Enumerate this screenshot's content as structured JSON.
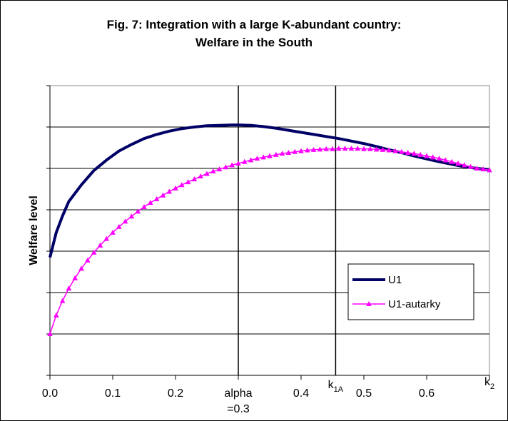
{
  "chart_data": {
    "type": "line",
    "title_lines": [
      "Fig. 7: Integration with a large K-abundant country:",
      "Welfare in the South"
    ],
    "xlabel": "",
    "ylabel": "Welfare level",
    "xlim": [
      0,
      0.7
    ],
    "ylim": [
      0,
      7
    ],
    "x_ticks": [
      {
        "value": 0.0,
        "label": "0.0"
      },
      {
        "value": 0.1,
        "label": "0.1"
      },
      {
        "value": 0.2,
        "label": "0.2"
      },
      {
        "value": 0.4,
        "label": "0.4"
      },
      {
        "value": 0.5,
        "label": "0.5"
      },
      {
        "value": 0.6,
        "label": "0.6"
      }
    ],
    "y_gridlines": [
      1,
      2,
      3,
      4,
      5,
      6
    ],
    "y_tick_labels_shown": false,
    "annotations": [
      {
        "x": 0.3,
        "line1": "alpha",
        "line2": "=0.3",
        "vertical_line": true
      },
      {
        "x": 0.455,
        "base": "k",
        "sub": "1A",
        "vertical_line": true
      },
      {
        "x": 0.7,
        "base": "k",
        "sub": "2",
        "vertical_line": false
      }
    ],
    "legend": {
      "position": "right",
      "entries": [
        "U1",
        "U1-autarky"
      ]
    },
    "series": [
      {
        "name": "U1",
        "color": "#000066",
        "marker": "none",
        "x": [
          0.0,
          0.01,
          0.02,
          0.03,
          0.05,
          0.07,
          0.09,
          0.11,
          0.13,
          0.15,
          0.17,
          0.19,
          0.21,
          0.23,
          0.25,
          0.27,
          0.29,
          0.3,
          0.32,
          0.34,
          0.36,
          0.38,
          0.4,
          0.42,
          0.44,
          0.46,
          0.48,
          0.5,
          0.52,
          0.54,
          0.56,
          0.58,
          0.6,
          0.62,
          0.64,
          0.66,
          0.68,
          0.7
        ],
        "y": [
          2.85,
          3.45,
          3.85,
          4.2,
          4.6,
          4.95,
          5.2,
          5.42,
          5.58,
          5.72,
          5.82,
          5.9,
          5.96,
          6.0,
          6.03,
          6.04,
          6.05,
          6.05,
          6.04,
          6.01,
          5.97,
          5.92,
          5.87,
          5.82,
          5.77,
          5.72,
          5.66,
          5.6,
          5.53,
          5.45,
          5.38,
          5.3,
          5.23,
          5.16,
          5.1,
          5.04,
          5.0,
          4.97
        ]
      },
      {
        "name": "U1-autarky",
        "color": "#ff00ff",
        "marker": "triangle",
        "x": [
          0.0,
          0.01,
          0.02,
          0.03,
          0.04,
          0.05,
          0.06,
          0.07,
          0.08,
          0.09,
          0.1,
          0.11,
          0.12,
          0.13,
          0.14,
          0.15,
          0.16,
          0.17,
          0.18,
          0.19,
          0.2,
          0.21,
          0.22,
          0.23,
          0.24,
          0.25,
          0.26,
          0.27,
          0.28,
          0.29,
          0.3,
          0.31,
          0.32,
          0.33,
          0.34,
          0.35,
          0.36,
          0.37,
          0.38,
          0.39,
          0.4,
          0.41,
          0.42,
          0.43,
          0.44,
          0.45,
          0.46,
          0.47,
          0.48,
          0.49,
          0.5,
          0.51,
          0.52,
          0.53,
          0.54,
          0.55,
          0.56,
          0.57,
          0.58,
          0.59,
          0.6,
          0.61,
          0.62,
          0.63,
          0.64,
          0.65,
          0.66,
          0.67,
          0.68,
          0.69,
          0.7
        ],
        "y": [
          1.0,
          1.45,
          1.8,
          2.1,
          2.35,
          2.58,
          2.78,
          2.97,
          3.14,
          3.3,
          3.45,
          3.59,
          3.72,
          3.84,
          3.96,
          4.07,
          4.17,
          4.26,
          4.35,
          4.44,
          4.52,
          4.6,
          4.67,
          4.74,
          4.81,
          4.87,
          4.93,
          4.98,
          5.03,
          5.08,
          5.12,
          5.16,
          5.2,
          5.24,
          5.27,
          5.3,
          5.33,
          5.36,
          5.38,
          5.4,
          5.42,
          5.44,
          5.45,
          5.46,
          5.47,
          5.47,
          5.48,
          5.48,
          5.48,
          5.48,
          5.47,
          5.47,
          5.46,
          5.45,
          5.44,
          5.42,
          5.4,
          5.38,
          5.36,
          5.33,
          5.3,
          5.27,
          5.24,
          5.2,
          5.16,
          5.12,
          5.08,
          5.04,
          5.0,
          4.98,
          4.96
        ]
      }
    ]
  }
}
